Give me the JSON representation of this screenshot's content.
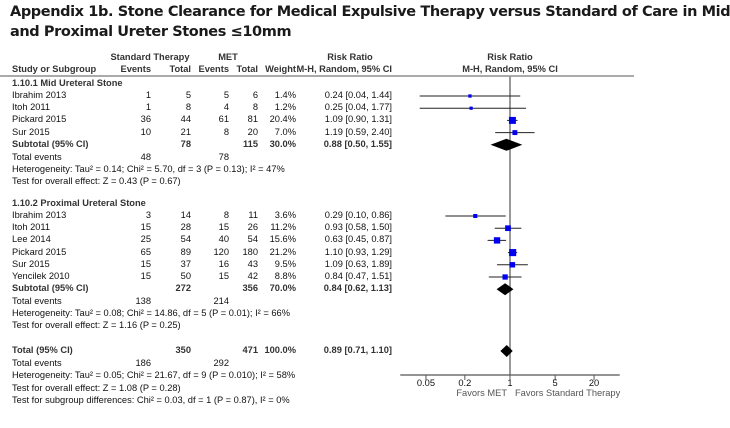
{
  "title": {
    "line1": "Appendix 1b. Stone Clearance for Medical Expulsive Therapy versus Standard of Care in Mid",
    "line2": "and Proximal Ureter Stones ≤10mm"
  },
  "header": {
    "group1": "Standard Therapy",
    "group2": "MET",
    "rr": "Risk Ratio",
    "rr_plot": "Risk Ratio",
    "study": "Study or Subgroup",
    "events1": "Events",
    "total1": "Total",
    "events2": "Events",
    "total2": "Total",
    "weight": "Weight",
    "method": "M-H, Random, 95% CI",
    "method_plot": "M-H, Random, 95% CI"
  },
  "chart_data": {
    "type": "forest",
    "xscale": "log",
    "xlim": [
      0.02,
      50
    ],
    "ticks": [
      "0.05",
      "0.2",
      "1",
      "5",
      "20"
    ],
    "tick_values": [
      0.05,
      0.2,
      1,
      5,
      20
    ],
    "xlabel_left": "Favors MET",
    "xlabel_right": "Favors Standard Therapy",
    "subgroups": [
      {
        "name": "1.10.1 Mid Ureteral Stone",
        "studies": [
          {
            "study": "Ibrahim 2013",
            "e1": "1",
            "t1": "5",
            "e2": "5",
            "t2": "6",
            "weight": "1.4%",
            "ci": "0.24 [0.04, 1.44]",
            "rr": 0.24,
            "lo": 0.04,
            "hi": 1.44,
            "w": 1.4
          },
          {
            "study": "Itoh 2011",
            "e1": "1",
            "t1": "8",
            "e2": "4",
            "t2": "8",
            "weight": "1.2%",
            "ci": "0.25 [0.04, 1.77]",
            "rr": 0.25,
            "lo": 0.04,
            "hi": 1.77,
            "w": 1.2
          },
          {
            "study": "Pickard 2015",
            "e1": "36",
            "t1": "44",
            "e2": "61",
            "t2": "81",
            "weight": "20.4%",
            "ci": "1.09 [0.90, 1.31]",
            "rr": 1.09,
            "lo": 0.9,
            "hi": 1.31,
            "w": 20.4
          },
          {
            "study": "Sur 2015",
            "e1": "10",
            "t1": "21",
            "e2": "8",
            "t2": "20",
            "weight": "7.0%",
            "ci": "1.19 [0.59, 2.40]",
            "rr": 1.19,
            "lo": 0.59,
            "hi": 2.4,
            "w": 7.0
          }
        ],
        "subtotal": {
          "label": "Subtotal (95% CI)",
          "t1": "78",
          "t2": "115",
          "weight": "30.0%",
          "ci": "0.88 [0.50, 1.55]",
          "rr": 0.88,
          "lo": 0.5,
          "hi": 1.55
        },
        "events_label": "Total events",
        "events1": "48",
        "events2": "78",
        "heterogeneity": "Heterogeneity: Tau² = 0.14; Chi² = 5.70, df = 3 (P = 0.13); I² = 47%",
        "effect": "Test for overall effect: Z = 0.43 (P = 0.67)"
      },
      {
        "name": "1.10.2 Proximal Ureteral Stone",
        "studies": [
          {
            "study": "Ibrahim 2013",
            "e1": "3",
            "t1": "14",
            "e2": "8",
            "t2": "11",
            "weight": "3.6%",
            "ci": "0.29 [0.10, 0.86]",
            "rr": 0.29,
            "lo": 0.1,
            "hi": 0.86,
            "w": 3.6
          },
          {
            "study": "Itoh 2011",
            "e1": "15",
            "t1": "28",
            "e2": "15",
            "t2": "26",
            "weight": "11.2%",
            "ci": "0.93 [0.58, 1.50]",
            "rr": 0.93,
            "lo": 0.58,
            "hi": 1.5,
            "w": 11.2
          },
          {
            "study": "Lee 2014",
            "e1": "25",
            "t1": "54",
            "e2": "40",
            "t2": "54",
            "weight": "15.6%",
            "ci": "0.63 [0.45, 0.87]",
            "rr": 0.63,
            "lo": 0.45,
            "hi": 0.87,
            "w": 15.6
          },
          {
            "study": "Pickard 2015",
            "e1": "65",
            "t1": "89",
            "e2": "120",
            "t2": "180",
            "weight": "21.2%",
            "ci": "1.10 [0.93, 1.29]",
            "rr": 1.1,
            "lo": 0.93,
            "hi": 1.29,
            "w": 21.2
          },
          {
            "study": "Sur 2015",
            "e1": "15",
            "t1": "37",
            "e2": "16",
            "t2": "43",
            "weight": "9.5%",
            "ci": "1.09 [0.63, 1.89]",
            "rr": 1.09,
            "lo": 0.63,
            "hi": 1.89,
            "w": 9.5
          },
          {
            "study": "Yencilek 2010",
            "e1": "15",
            "t1": "50",
            "e2": "15",
            "t2": "42",
            "weight": "8.8%",
            "ci": "0.84 [0.47, 1.51]",
            "rr": 0.84,
            "lo": 0.47,
            "hi": 1.51,
            "w": 8.8
          }
        ],
        "subtotal": {
          "label": "Subtotal (95% CI)",
          "t1": "272",
          "t2": "356",
          "weight": "70.0%",
          "ci": "0.84 [0.62, 1.13]",
          "rr": 0.84,
          "lo": 0.62,
          "hi": 1.13
        },
        "events_label": "Total events",
        "events1": "138",
        "events2": "214",
        "heterogeneity": "Heterogeneity: Tau² = 0.08; Chi² = 14.86, df = 5 (P = 0.01); I² = 66%",
        "effect": "Test for overall effect: Z = 1.16 (P = 0.25)"
      }
    ],
    "total": {
      "label": "Total (95% CI)",
      "t1": "350",
      "t2": "471",
      "weight": "100.0%",
      "ci": "0.89 [0.71, 1.10]",
      "rr": 0.89,
      "lo": 0.71,
      "hi": 1.1,
      "events_label": "Total events",
      "events1": "186",
      "events2": "292",
      "heterogeneity": "Heterogeneity: Tau² = 0.05; Chi² = 21.67, df = 9 (P = 0.010); I² = 58%",
      "effect": "Test for overall effect: Z = 1.08 (P = 0.28)",
      "subgroup_diff": "Test for subgroup differences: Chi² = 0.03, df = 1 (P = 0.87), I² = 0%"
    }
  },
  "colors": {
    "square": "#0000ee",
    "diamond": "#000000",
    "axis": "#555555",
    "vline": "#999999"
  }
}
